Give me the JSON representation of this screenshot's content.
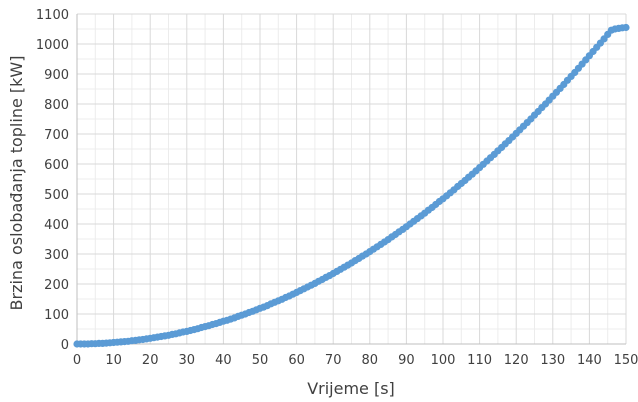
{
  "chart_data": {
    "type": "scatter",
    "title": "",
    "xlabel": "Vrijeme [s]",
    "ylabel": "Brzina oslobađanja topline [kW]",
    "xlim": [
      0,
      150
    ],
    "ylim": [
      0,
      1100
    ],
    "x_ticks": [
      "0",
      "10",
      "20",
      "30",
      "40",
      "50",
      "60",
      "70",
      "80",
      "90",
      "100",
      "110",
      "120",
      "130",
      "140",
      "150"
    ],
    "y_ticks": [
      "0",
      "100",
      "200",
      "300",
      "400",
      "500",
      "600",
      "700",
      "800",
      "900",
      "1000",
      "1100"
    ],
    "grid": true,
    "series_color": "#5b9bd5",
    "series": [
      {
        "x": [
          0,
          1,
          2,
          3,
          4,
          5,
          6,
          7,
          8,
          9,
          10,
          11,
          12,
          13,
          14,
          15,
          16,
          17,
          18,
          19,
          20,
          21,
          22,
          23,
          24,
          25,
          26,
          27,
          28,
          29,
          30,
          31,
          32,
          33,
          34,
          35,
          36,
          37,
          38,
          39,
          40,
          41,
          42,
          43,
          44,
          45,
          46,
          47,
          48,
          49,
          50,
          51,
          52,
          53,
          54,
          55,
          56,
          57,
          58,
          59,
          60,
          61,
          62,
          63,
          64,
          65,
          66,
          67,
          68,
          69,
          70,
          71,
          72,
          73,
          74,
          75,
          76,
          77,
          78,
          79,
          80,
          81,
          82,
          83,
          84,
          85,
          86,
          87,
          88,
          89,
          90,
          91,
          92,
          93,
          94,
          95,
          96,
          97,
          98,
          99,
          100,
          101,
          102,
          103,
          104,
          105,
          106,
          107,
          108,
          109,
          110,
          111,
          112,
          113,
          114,
          115,
          116,
          117,
          118,
          119,
          120,
          121,
          122,
          123,
          124,
          125,
          126,
          127,
          128,
          129,
          130,
          131,
          132,
          133,
          134,
          135,
          136,
          137,
          138,
          139,
          140,
          141,
          142,
          143,
          144,
          145,
          146,
          147,
          148,
          149,
          150
        ],
        "y": [
          0,
          0,
          0,
          0,
          1,
          1,
          2,
          2,
          3,
          4,
          5,
          6,
          7,
          8,
          9,
          11,
          12,
          14,
          15,
          17,
          19,
          21,
          23,
          25,
          27,
          29,
          32,
          34,
          37,
          40,
          42,
          45,
          48,
          51,
          55,
          58,
          61,
          65,
          68,
          72,
          76,
          79,
          83,
          87,
          92,
          96,
          100,
          105,
          109,
          114,
          119,
          123,
          128,
          134,
          139,
          144,
          149,
          155,
          160,
          166,
          172,
          178,
          184,
          190,
          196,
          202,
          209,
          215,
          222,
          228,
          235,
          242,
          249,
          256,
          263,
          270,
          278,
          285,
          293,
          300,
          308,
          316,
          324,
          332,
          340,
          348,
          357,
          365,
          374,
          382,
          391,
          400,
          409,
          418,
          427,
          436,
          446,
          455,
          465,
          475,
          484,
          494,
          504,
          514,
          525,
          535,
          545,
          556,
          566,
          577,
          588,
          599,
          610,
          621,
          632,
          644,
          655,
          667,
          678,
          690,
          702,
          714,
          726,
          738,
          750,
          763,
          775,
          788,
          800,
          813,
          826,
          839,
          852,
          865,
          879,
          892,
          905,
          919,
          933,
          947,
          961,
          975,
          989,
          1003,
          1017,
          1032,
          1046,
          1050,
          1052,
          1054,
          1055
        ]
      }
    ]
  }
}
